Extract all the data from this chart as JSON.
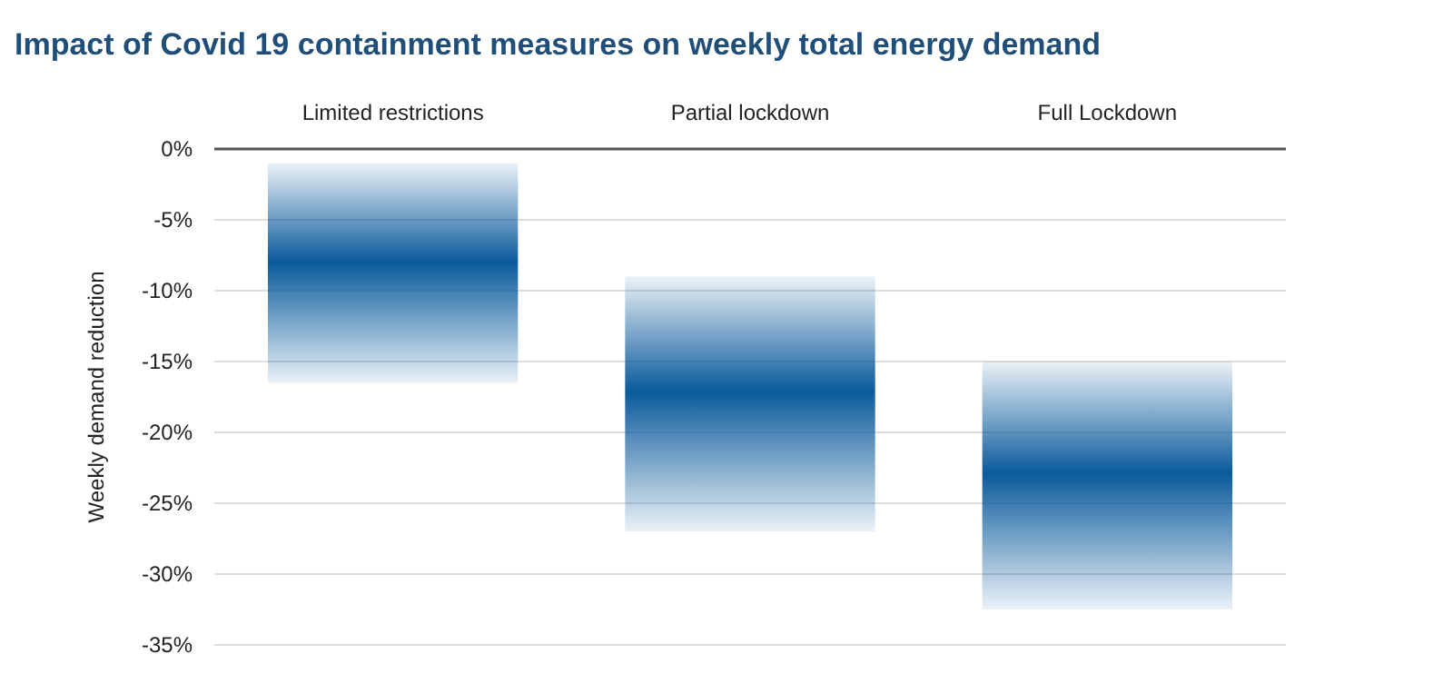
{
  "chart_data": {
    "type": "bar",
    "title": "Impact of Covid 19 containment measures on weekly total energy demand",
    "ylabel": "Weekly demand reduction",
    "categories": [
      "Limited restrictions",
      "Partial lockdown",
      "Full Lockdown"
    ],
    "base": [
      -1,
      -9,
      -15
    ],
    "values": [
      -15.5,
      -18,
      -17.5
    ],
    "color": "#0a5a9c",
    "ylim": [
      -35,
      0
    ],
    "yticks": [
      {
        "value": 0,
        "label": "0%"
      },
      {
        "value": -5,
        "label": "-5%"
      },
      {
        "value": -10,
        "label": "-10%"
      },
      {
        "value": -15,
        "label": "-15%"
      },
      {
        "value": -20,
        "label": "-20%"
      },
      {
        "value": -25,
        "label": "-25%"
      },
      {
        "value": -30,
        "label": "-30%"
      },
      {
        "value": -35,
        "label": "-35%"
      }
    ],
    "grid": "y"
  }
}
